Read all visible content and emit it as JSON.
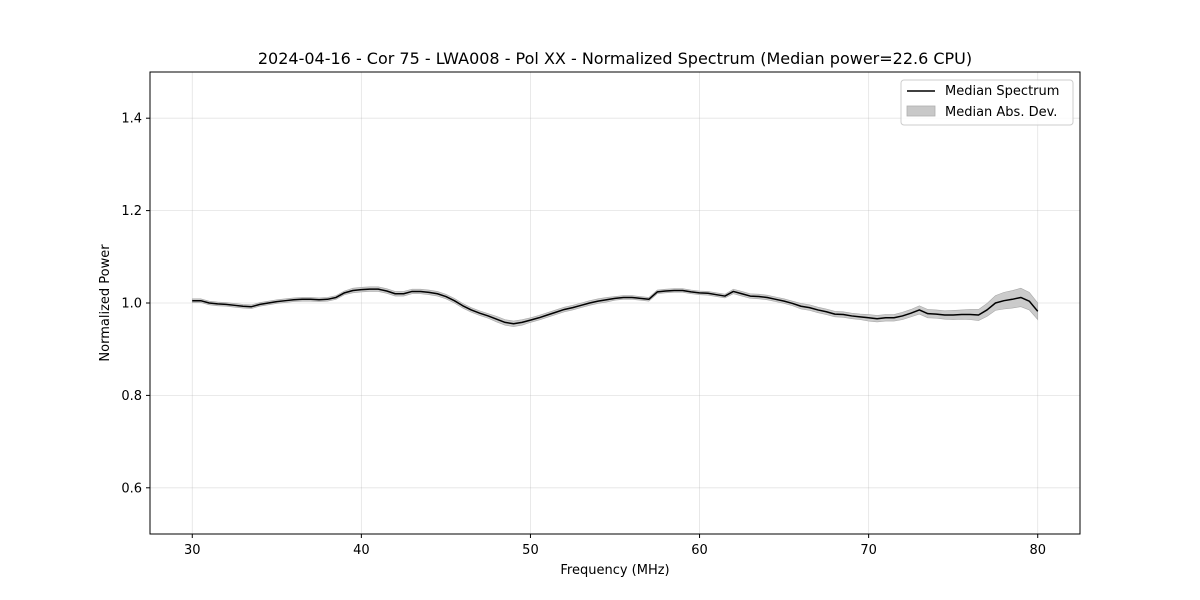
{
  "chart_data": {
    "type": "line",
    "title": "2024-04-16 - Cor 75 - LWA008 - Pol XX - Normalized Spectrum (Median power=22.6 CPU)",
    "xlabel": "Frequency (MHz)",
    "ylabel": "Normalized Power",
    "xlim": [
      27.5,
      82.5
    ],
    "ylim": [
      0.5,
      1.5
    ],
    "xticks": [
      30,
      40,
      50,
      60,
      70,
      80
    ],
    "yticks": [
      0.6,
      0.8,
      1.0,
      1.2,
      1.4
    ],
    "xtick_labels": [
      "30",
      "40",
      "50",
      "60",
      "70",
      "80"
    ],
    "ytick_labels": [
      "0.6",
      "0.8",
      "1.0",
      "1.2",
      "1.4"
    ],
    "grid": true,
    "legend_position": "top-right",
    "series": [
      {
        "name": "Median Spectrum",
        "color": "#000000",
        "x": [
          30,
          30.5,
          31,
          31.5,
          32,
          32.5,
          33,
          33.5,
          34,
          34.5,
          35,
          35.5,
          36,
          36.5,
          37,
          37.5,
          38,
          38.5,
          39,
          39.5,
          40,
          40.5,
          41,
          41.5,
          42,
          42.5,
          43,
          43.5,
          44,
          44.5,
          45,
          45.5,
          46,
          46.5,
          47,
          47.5,
          48,
          48.5,
          49,
          49.5,
          50,
          50.5,
          51,
          51.5,
          52,
          52.5,
          53,
          53.5,
          54,
          54.5,
          55,
          55.5,
          56,
          56.5,
          57,
          57.5,
          58,
          58.5,
          59,
          59.5,
          60,
          60.5,
          61,
          61.5,
          62,
          62.5,
          63,
          63.5,
          64,
          64.5,
          65,
          65.5,
          66,
          66.5,
          67,
          67.5,
          68,
          68.5,
          69,
          69.5,
          70,
          70.5,
          71,
          71.5,
          72,
          72.5,
          73,
          73.5,
          74,
          74.5,
          75,
          75.5,
          76,
          76.5,
          77,
          77.5,
          78,
          78.5,
          79,
          79.5,
          80
        ],
        "y": [
          1.005,
          1.005,
          1.0,
          0.998,
          0.997,
          0.995,
          0.993,
          0.992,
          0.997,
          1.0,
          1.003,
          1.005,
          1.007,
          1.008,
          1.008,
          1.007,
          1.008,
          1.012,
          1.022,
          1.027,
          1.029,
          1.03,
          1.03,
          1.026,
          1.02,
          1.02,
          1.025,
          1.025,
          1.023,
          1.02,
          1.014,
          1.005,
          0.994,
          0.985,
          0.978,
          0.972,
          0.965,
          0.958,
          0.955,
          0.958,
          0.963,
          0.968,
          0.974,
          0.98,
          0.986,
          0.99,
          0.995,
          1.0,
          1.004,
          1.007,
          1.01,
          1.012,
          1.012,
          1.01,
          1.008,
          1.024,
          1.026,
          1.027,
          1.027,
          1.024,
          1.022,
          1.021,
          1.018,
          1.015,
          1.025,
          1.02,
          1.015,
          1.014,
          1.012,
          1.008,
          1.004,
          0.999,
          0.993,
          0.99,
          0.985,
          0.981,
          0.976,
          0.975,
          0.972,
          0.97,
          0.968,
          0.966,
          0.968,
          0.968,
          0.972,
          0.978,
          0.985,
          0.977,
          0.976,
          0.974,
          0.974,
          0.975,
          0.975,
          0.974,
          0.985,
          1.0,
          1.005,
          1.008,
          1.012,
          1.004,
          0.982
        ]
      }
    ],
    "band": {
      "name": "Median Abs. Dev.",
      "color": "#c8c8c8",
      "halfwidth": [
        0.004,
        0.004,
        0.004,
        0.004,
        0.004,
        0.004,
        0.004,
        0.004,
        0.004,
        0.004,
        0.004,
        0.004,
        0.004,
        0.004,
        0.004,
        0.004,
        0.004,
        0.004,
        0.004,
        0.005,
        0.005,
        0.005,
        0.005,
        0.005,
        0.005,
        0.005,
        0.005,
        0.005,
        0.005,
        0.005,
        0.005,
        0.005,
        0.005,
        0.005,
        0.005,
        0.005,
        0.006,
        0.006,
        0.006,
        0.006,
        0.005,
        0.005,
        0.005,
        0.005,
        0.005,
        0.005,
        0.005,
        0.005,
        0.005,
        0.005,
        0.004,
        0.004,
        0.004,
        0.004,
        0.004,
        0.004,
        0.004,
        0.004,
        0.004,
        0.004,
        0.004,
        0.004,
        0.004,
        0.004,
        0.005,
        0.005,
        0.005,
        0.005,
        0.005,
        0.005,
        0.005,
        0.005,
        0.006,
        0.006,
        0.006,
        0.006,
        0.006,
        0.006,
        0.006,
        0.006,
        0.007,
        0.007,
        0.007,
        0.007,
        0.008,
        0.008,
        0.009,
        0.009,
        0.009,
        0.009,
        0.01,
        0.01,
        0.011,
        0.012,
        0.014,
        0.016,
        0.018,
        0.019,
        0.02,
        0.019,
        0.018
      ]
    }
  }
}
